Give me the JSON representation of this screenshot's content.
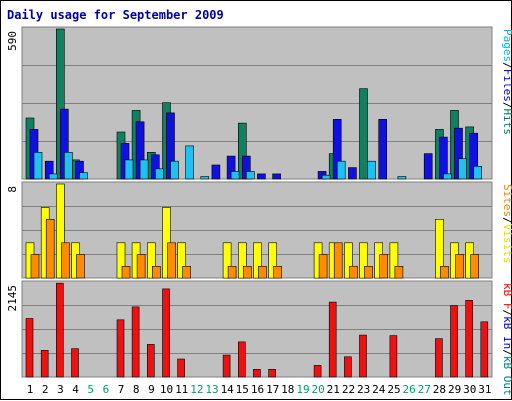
{
  "chart_data": {
    "type": "bar",
    "title": "Daily usage for September 2009",
    "categories": [
      "1",
      "2",
      "3",
      "4",
      "5",
      "6",
      "7",
      "8",
      "9",
      "10",
      "11",
      "12",
      "13",
      "14",
      "15",
      "16",
      "17",
      "18",
      "19",
      "20",
      "21",
      "22",
      "23",
      "24",
      "25",
      "26",
      "27",
      "28",
      "29",
      "30",
      "31"
    ],
    "weekend_days": [
      "5",
      "6",
      "12",
      "13",
      "19",
      "20",
      "26",
      "27"
    ],
    "grid": true,
    "panels": [
      {
        "name": "hits_files_pages",
        "ymax_label": "590",
        "ylim": [
          0,
          590
        ],
        "legend": [
          {
            "text": "Pages",
            "color": "#00b8e8"
          },
          {
            "text": "/",
            "color": "#000000"
          },
          {
            "text": "Files",
            "color": "#0000e0"
          },
          {
            "text": "/",
            "color": "#000000"
          },
          {
            "text": "Hits",
            "color": "#00806a"
          }
        ],
        "series": [
          {
            "name": "Hits",
            "color": "#118060",
            "values": [
              240,
              0,
              590,
              75,
              0,
              0,
              185,
              270,
              105,
              300,
              0,
              0,
              0,
              0,
              220,
              0,
              0,
              0,
              0,
              0,
              100,
              0,
              355,
              0,
              0,
              0,
              0,
              195,
              270,
              205,
              0
            ]
          },
          {
            "name": "Files",
            "color": "#1010e0",
            "values": [
              195,
              70,
              275,
              70,
              0,
              0,
              140,
              225,
              95,
              260,
              0,
              0,
              55,
              90,
              90,
              20,
              20,
              0,
              0,
              30,
              235,
              45,
              0,
              235,
              0,
              0,
              100,
              165,
              200,
              180,
              0
            ]
          },
          {
            "name": "Pages",
            "color": "#20c0f0",
            "values": [
              105,
              20,
              105,
              25,
              0,
              0,
              75,
              75,
              40,
              70,
              130,
              10,
              0,
              30,
              30,
              0,
              0,
              0,
              0,
              15,
              70,
              0,
              70,
              0,
              10,
              0,
              0,
              20,
              80,
              50,
              0
            ]
          }
        ]
      },
      {
        "name": "visits_sites",
        "ymax_label": "8",
        "ylim": [
          0,
          8
        ],
        "legend": [
          {
            "text": "Sites",
            "color": "#ff8000"
          },
          {
            "text": "/",
            "color": "#000000"
          },
          {
            "text": "Visits",
            "color": "#e0e000"
          }
        ],
        "series": [
          {
            "name": "Visits",
            "color": "#ffff00",
            "values": [
              3,
              6,
              8,
              3,
              0,
              0,
              3,
              3,
              3,
              6,
              3,
              0,
              0,
              3,
              3,
              3,
              3,
              0,
              0,
              3,
              3,
              3,
              3,
              3,
              3,
              0,
              0,
              5,
              3,
              3,
              0
            ]
          },
          {
            "name": "Sites",
            "color": "#ff8c00",
            "values": [
              2,
              5,
              3,
              2,
              0,
              0,
              1,
              2,
              1,
              3,
              1,
              0,
              0,
              1,
              1,
              1,
              1,
              0,
              0,
              2,
              3,
              1,
              1,
              2,
              1,
              0,
              0,
              1,
              2,
              2,
              0
            ]
          }
        ]
      },
      {
        "name": "kbytes",
        "ymax_label": "2145",
        "ylim": [
          0,
          2145
        ],
        "legend": [
          {
            "text": "kB F",
            "color": "#ff0000"
          },
          {
            "text": "/",
            "color": "#000000"
          },
          {
            "text": "kB In",
            "color": "#0000e0"
          },
          {
            "text": "/",
            "color": "#000000"
          },
          {
            "text": "kB Out",
            "color": "#008080"
          }
        ],
        "series": [
          {
            "name": "kB F",
            "color": "#ee1111",
            "values": [
              1335,
              610,
              2140,
              645,
              0,
              0,
              1305,
              1600,
              745,
              2010,
              410,
              0,
              0,
              500,
              800,
              175,
              175,
              0,
              0,
              265,
              1710,
              460,
              955,
              0,
              945,
              0,
              0,
              875,
              1630,
              1750,
              1260
            ]
          }
        ]
      }
    ]
  }
}
